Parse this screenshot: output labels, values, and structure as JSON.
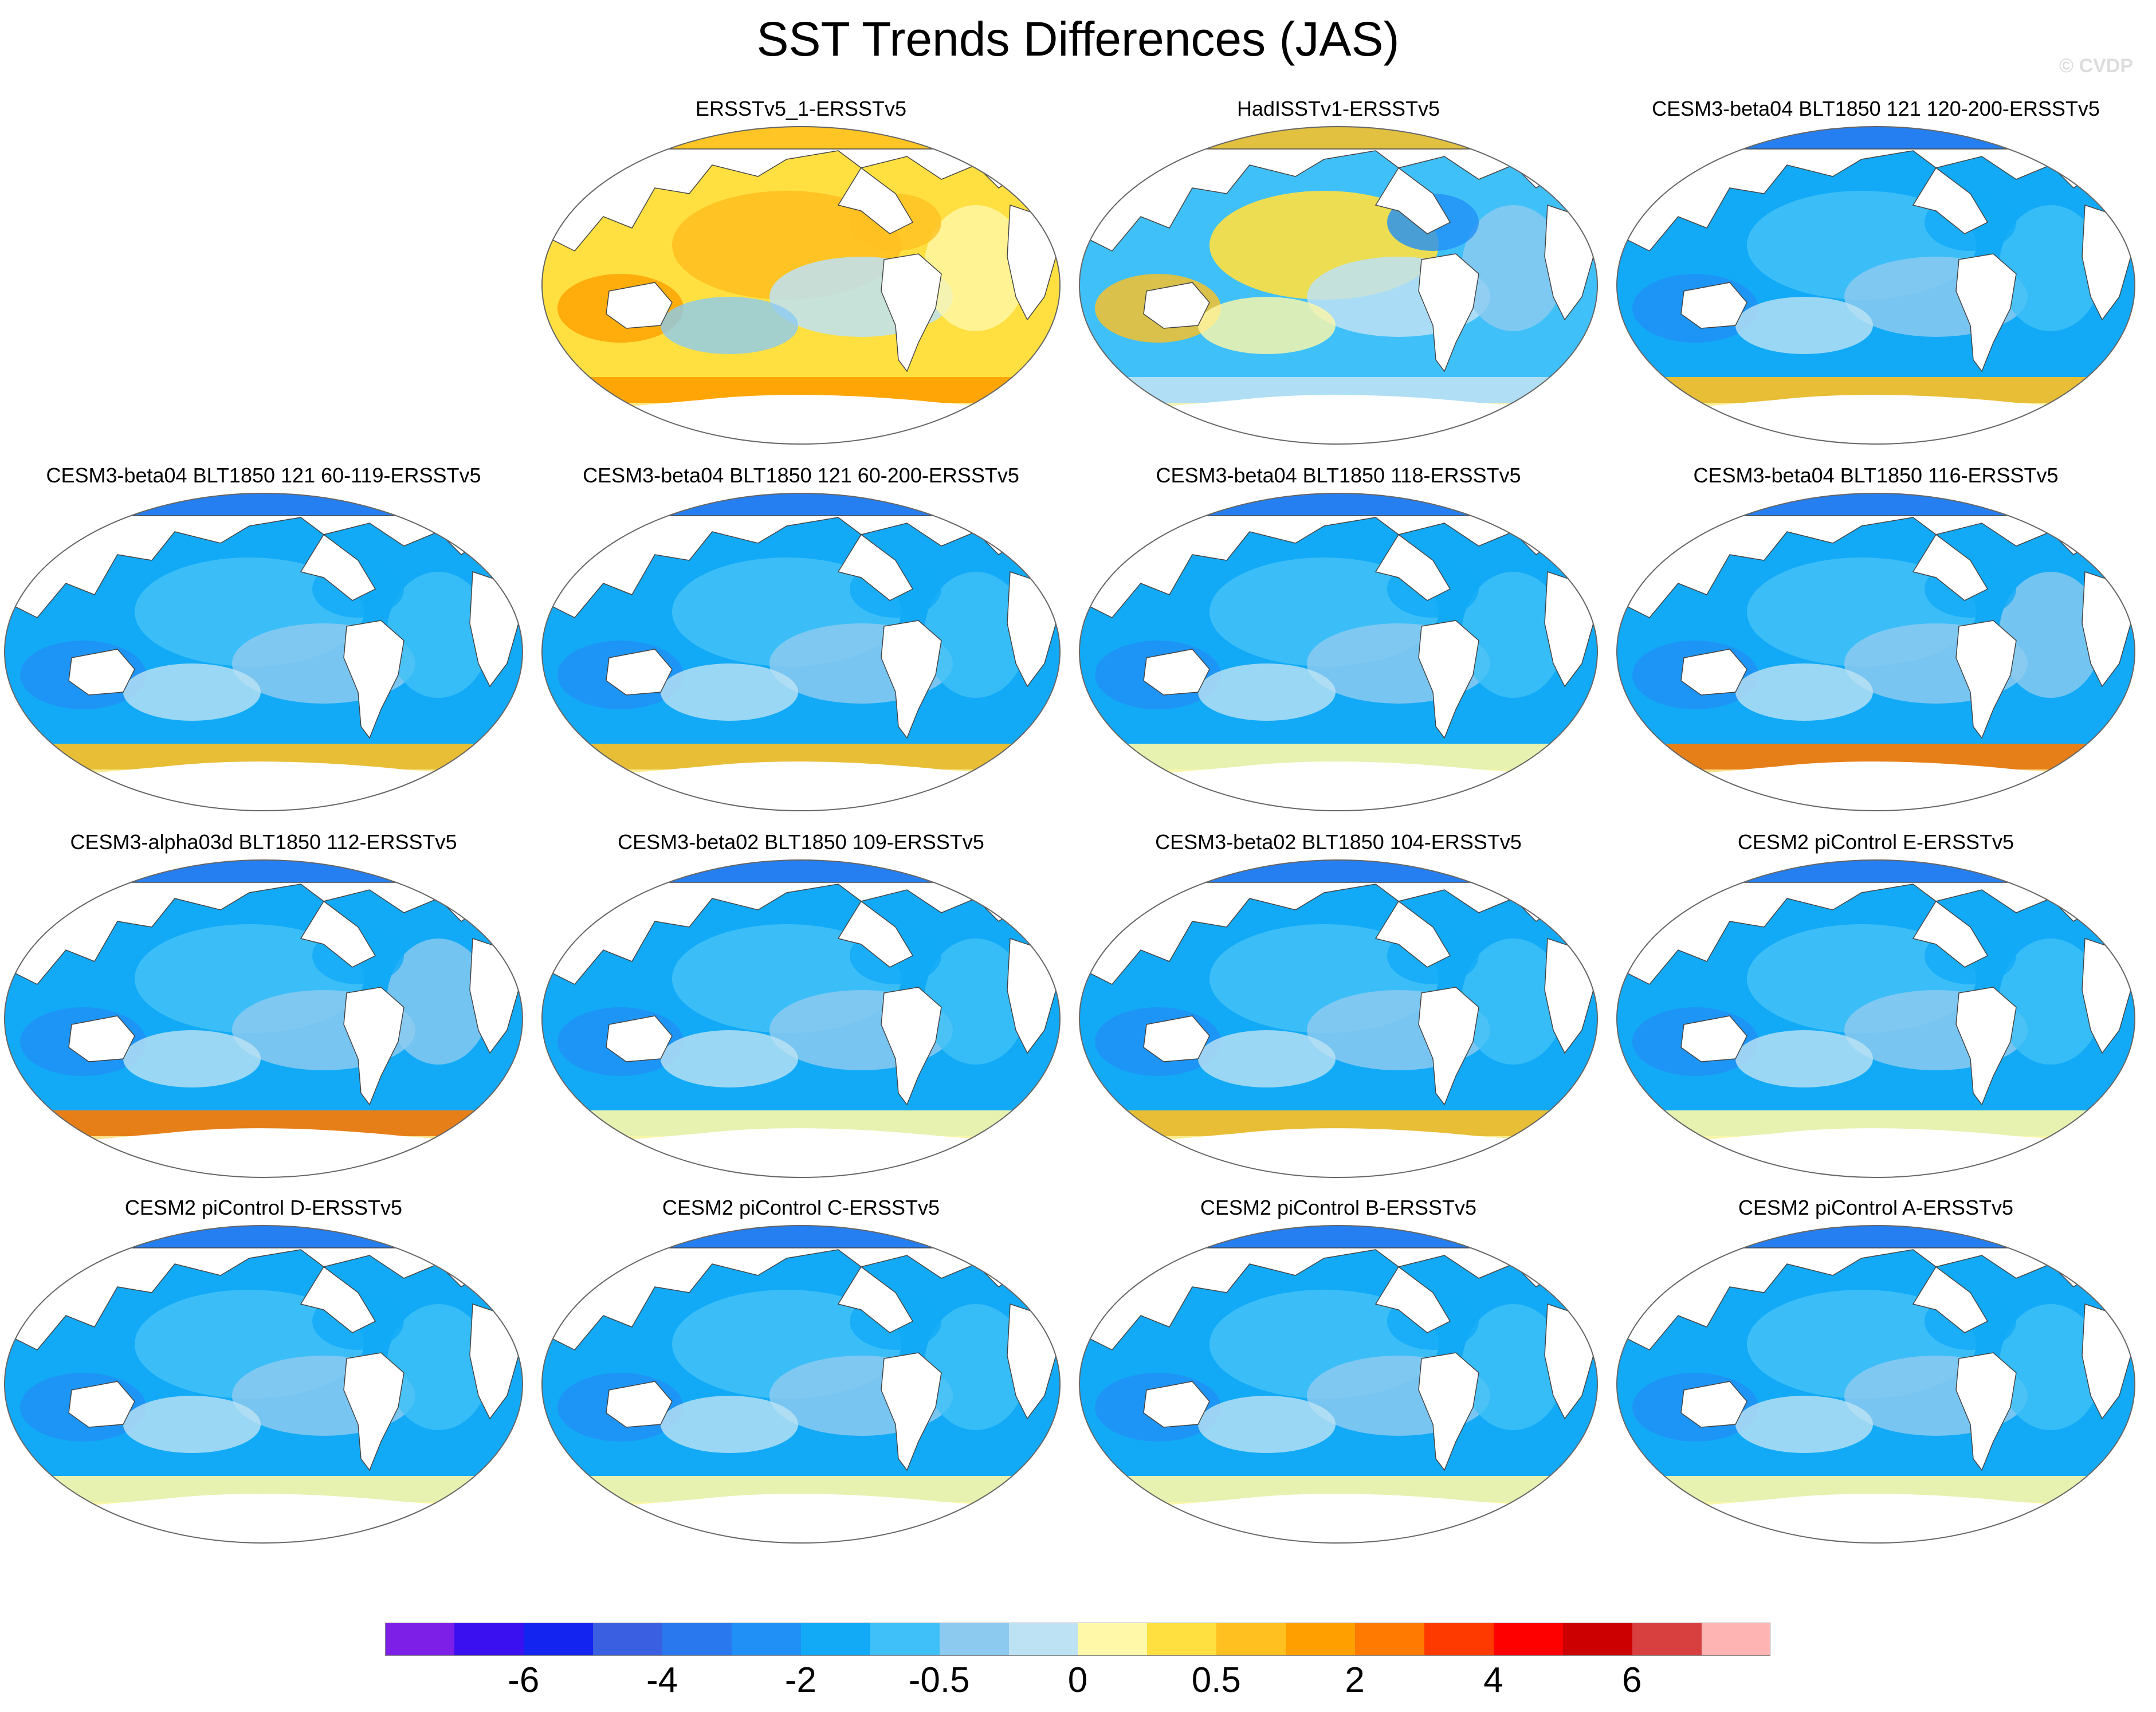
{
  "title": "SST Trends Differences (JAS)",
  "copyright": "© CVDP",
  "panels": [
    {
      "label": "ERSSTv5_1-ERSSTv5",
      "pattern": "warm"
    },
    {
      "label": "HadISSTv1-ERSSTv5",
      "pattern": "mixed"
    },
    {
      "label": "CESM3-beta04 BLT1850 121 120-200-ERSSTv5",
      "pattern": "cool-so"
    },
    {
      "label": "CESM3-beta04 BLT1850 121 60-119-ERSSTv5",
      "pattern": "cool-so"
    },
    {
      "label": "CESM3-beta04 BLT1850 121 60-200-ERSSTv5",
      "pattern": "cool-so"
    },
    {
      "label": "CESM3-beta04 BLT1850 118-ERSSTv5",
      "pattern": "cool"
    },
    {
      "label": "CESM3-beta04 BLT1850 116-ERSSTv5",
      "pattern": "cool-so-strong"
    },
    {
      "label": "CESM3-alpha03d BLT1850 112-ERSSTv5",
      "pattern": "cool-so-strong"
    },
    {
      "label": "CESM3-beta02 BLT1850 109-ERSSTv5",
      "pattern": "cool"
    },
    {
      "label": "CESM3-beta02 BLT1850 104-ERSSTv5",
      "pattern": "cool-so"
    },
    {
      "label": "CESM2 piControl E-ERSSTv5",
      "pattern": "cool"
    },
    {
      "label": "CESM2 piControl D-ERSSTv5",
      "pattern": "cool"
    },
    {
      "label": "CESM2 piControl C-ERSSTv5",
      "pattern": "cool"
    },
    {
      "label": "CESM2 piControl B-ERSSTv5",
      "pattern": "cool"
    },
    {
      "label": "CESM2 piControl A-ERSSTv5",
      "pattern": "cool"
    }
  ],
  "colorbar": {
    "colors": [
      "#7e1fe8",
      "#3a10f0",
      "#1424f0",
      "#3a5fe0",
      "#2a78ee",
      "#2090f6",
      "#12aaf6",
      "#40c0f8",
      "#8ccaf0",
      "#bde2f4",
      "#fff8a8",
      "#ffe040",
      "#ffc020",
      "#ffa000",
      "#ff7a00",
      "#ff3a00",
      "#ff0000",
      "#cc0000",
      "#d84040",
      "#ffb4b4"
    ],
    "labels": [
      "-6",
      "-4",
      "-2",
      "-0.5",
      "0",
      "0.5",
      "2",
      "4",
      "6"
    ]
  }
}
